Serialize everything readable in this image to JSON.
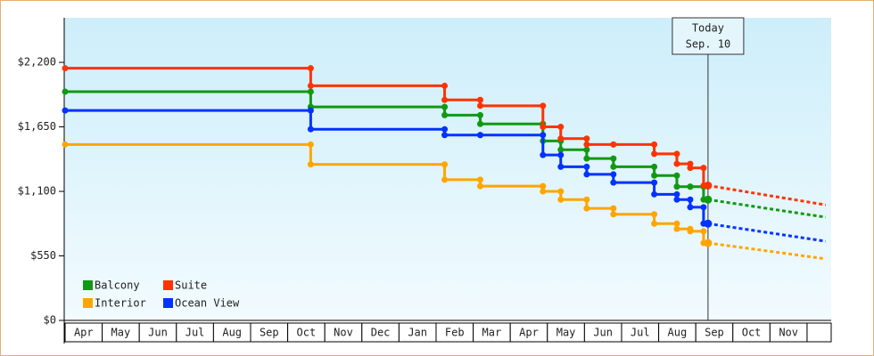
{
  "chart_data": {
    "type": "step",
    "categories": [
      "Apr",
      "May",
      "Jun",
      "Jul",
      "Aug",
      "Sep",
      "Oct",
      "Nov",
      "Dec",
      "Jan",
      "Feb",
      "Mar",
      "Apr",
      "May",
      "Jun",
      "Jul",
      "Aug",
      "Sep",
      "Oct",
      "Nov"
    ],
    "xlim": [
      0,
      20.65
    ],
    "ylim": [
      0,
      2580
    ],
    "yticks": [
      {
        "value": 0,
        "label": "$0"
      },
      {
        "value": 550,
        "label": "$550"
      },
      {
        "value": 1100,
        "label": "$1,100"
      },
      {
        "value": 1650,
        "label": "$1,650"
      },
      {
        "value": 2200,
        "label": "$2,200"
      }
    ],
    "x": [
      0,
      6.62,
      10.23,
      11.19,
      12.88,
      13.36,
      14.06,
      14.78,
      15.88,
      16.49,
      16.85,
      17.21
    ],
    "today_x": 17.33,
    "today_label": [
      "Today",
      "Sep. 10"
    ],
    "forecast_x": 20.5,
    "series": [
      {
        "name": "Balcony",
        "color": "#119911",
        "values": [
          1950,
          1820,
          1750,
          1675,
          1530,
          1455,
          1380,
          1310,
          1235,
          1140,
          1140,
          1030
        ],
        "forecast": 880
      },
      {
        "name": "Suite",
        "color": "#ff3300",
        "values": [
          2150,
          2000,
          1880,
          1830,
          1650,
          1550,
          1500,
          1500,
          1420,
          1335,
          1300,
          1150
        ],
        "forecast": 985
      },
      {
        "name": "Interior",
        "color": "#ffa500",
        "values": [
          1500,
          1330,
          1200,
          1145,
          1100,
          1030,
          955,
          905,
          825,
          780,
          760,
          660
        ],
        "forecast": 525
      },
      {
        "name": "Ocean View",
        "color": "#0033ff",
        "values": [
          1790,
          1630,
          1580,
          1580,
          1410,
          1310,
          1245,
          1175,
          1075,
          1030,
          965,
          825
        ],
        "forecast": 675
      }
    ]
  }
}
